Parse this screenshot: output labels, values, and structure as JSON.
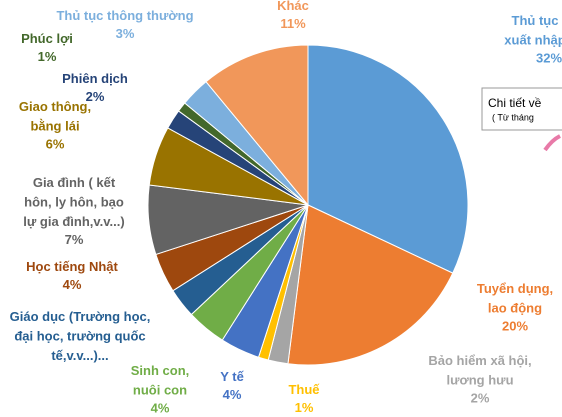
{
  "chart_data": {
    "type": "pie",
    "categories": [
      "Thủ tục\nxuất nhập",
      "Tuyển dụng,\nlao động",
      "Bảo hiểm xã hội,\nlương hưu",
      "Thuế",
      "Y tế",
      "Sinh con,\nnuôi con",
      "Giáo dục (Trường học,\nđại học, trường quốc\ntế,v.v...)...",
      "Học tiếng Nhật",
      "Gia đình ( kết\nhôn, ly hôn, bạo\nlự gia đình,v.v...)",
      "Giao thông,\nbằng lái",
      "Phiên dịch",
      "Phúc lợi",
      "Thủ tục thông thường",
      "Khác"
    ],
    "values": [
      32,
      20,
      2,
      1,
      4,
      4,
      3,
      4,
      7,
      6,
      2,
      1,
      3,
      11
    ],
    "value_labels": [
      "32%",
      "20%",
      "2%",
      "1%",
      "4%",
      "4%",
      null,
      "4%",
      "7%",
      "6%",
      "2%",
      "1%",
      "3%",
      "11%"
    ],
    "colors": [
      "#5b9bd5",
      "#ed7d31",
      "#a5a5a5",
      "#ffc000",
      "#4472c4",
      "#70ad47",
      "#255e91",
      "#9e480e",
      "#636363",
      "#997300",
      "#264478",
      "#43682b",
      "#7cafdd",
      "#f1975a"
    ],
    "label_colors": [
      "#5b9bd5",
      "#ed7d31",
      "#a5a5a5",
      "#ffc000",
      "#4472c4",
      "#70ad47",
      "#255e91",
      "#9e480e",
      "#636363",
      "#997300",
      "#264478",
      "#43682b",
      "#7cafdd",
      "#f1975a"
    ],
    "annotations": [
      "Chi tiết về",
      "( Từ tháng"
    ]
  }
}
